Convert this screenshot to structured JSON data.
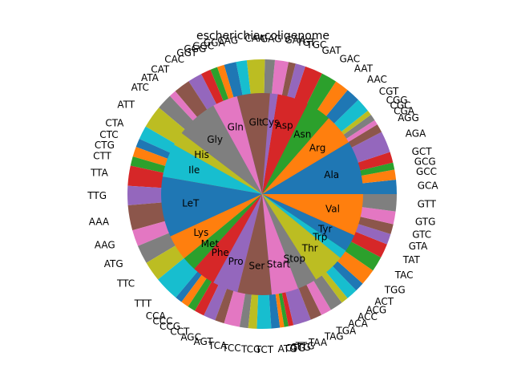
{
  "chart_data": {
    "type": "pie",
    "title": "escherichia-coligenome",
    "palette": [
      "#1f77b4",
      "#ff7f0e",
      "#2ca02c",
      "#d62728",
      "#9467bd",
      "#8c564b",
      "#e377c2",
      "#7f7f7f",
      "#bcbd22",
      "#17becf"
    ],
    "inner": {
      "labels": [
        "Ala",
        "Arg",
        "Asn",
        "Asp",
        "Cys",
        "Glt",
        "Gln",
        "Gly",
        "His",
        "Ile",
        "LeT",
        "Lys",
        "Met",
        "Phe",
        "Pro",
        "Ser",
        "Start",
        "Stop",
        "Thr",
        "Trp",
        "Tyr",
        "Val"
      ],
      "values": [
        9.0,
        5.2,
        4.2,
        5.2,
        1.3,
        5.5,
        4.2,
        7.0,
        2.3,
        5.6,
        10.1,
        4.3,
        2.4,
        3.9,
        4.3,
        5.7,
        4.5,
        3.3,
        5.4,
        1.5,
        2.9,
        7.0
      ]
    },
    "outer": {
      "labels": [
        "GCA",
        "GCC",
        "GCG",
        "GCT",
        "AGA",
        "AGG",
        "CGA",
        "CGC",
        "CGG",
        "CGT",
        "AAC",
        "AAT",
        "GAC",
        "GAT",
        "TGC",
        "TGT",
        "GAA",
        "GAG",
        "CAA",
        "CAG",
        "GGA",
        "GGC",
        "GGG",
        "GGT",
        "CAC",
        "CAT",
        "ATA",
        "ATC",
        "ATT",
        "CTA",
        "CTC",
        "CTG",
        "CTT",
        "TTA",
        "TTG",
        "AAA",
        "AAG",
        "ATG",
        "TTC",
        "TTT",
        "CCA",
        "CCC",
        "CCG",
        "CCT",
        "AGC",
        "AGT",
        "TCA",
        "TCC",
        "TCG",
        "TCT",
        "ATG",
        "CTG",
        "GTG",
        "TTG",
        "TAA",
        "TAG",
        "TGA",
        "ACA",
        "ACC",
        "ACG",
        "ACT",
        "TGG",
        "TAC",
        "TAT",
        "GTA",
        "GTC",
        "GTG",
        "GTT"
      ],
      "values": [
        2.0,
        1.4,
        1.0,
        1.5,
        3.0,
        1.2,
        0.7,
        0.9,
        0.7,
        2.0,
        2.0,
        2.0,
        2.2,
        2.5,
        1.4,
        1.0,
        1.9,
        1.4,
        2.5,
        1.5,
        1.7,
        1.0,
        1.0,
        1.4,
        2.0,
        2.3,
        1.0,
        2.2,
        3.2,
        1.9,
        1.2,
        1.4,
        1.3,
        2.8,
        2.7,
        3.5,
        2.3,
        2.6,
        2.8,
        3.5,
        1.0,
        1.1,
        1.1,
        1.4,
        1.7,
        1.3,
        2.2,
        1.2,
        1.2,
        2.0,
        1.2,
        0.6,
        0.6,
        0.7,
        2.5,
        1.6,
        1.5,
        1.8,
        1.0,
        1.6,
        1.3,
        2.3,
        2.1,
        2.0,
        1.5,
        1.4,
        1.8,
        2.4
      ]
    }
  }
}
